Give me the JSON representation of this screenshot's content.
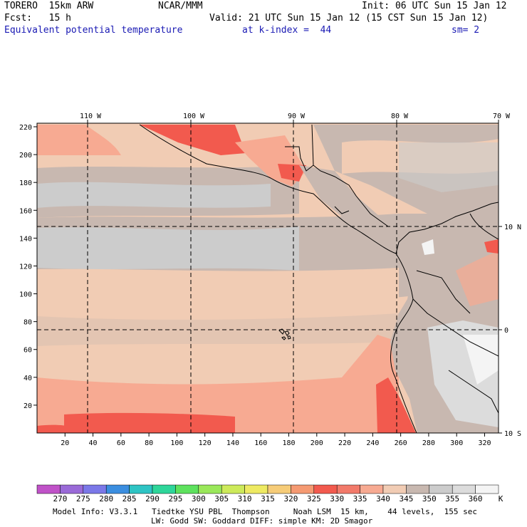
{
  "header": {
    "model": "TORERO  15km ARW",
    "org": "NCAR/MMM",
    "init": "Init: 06 UTC Sun 15 Jan 12",
    "fcst": "Fcst:   15 h",
    "valid": "Valid: 21 UTC Sun 15 Jan 12 (15 CST Sun 15 Jan 12)",
    "field": "Equivalent potential temperature",
    "level": "at k-index =  44",
    "smooth": "sm= 2"
  },
  "axes": {
    "top_lon": [
      "110 W",
      "100 W",
      "90 W",
      "80 W",
      "70 W"
    ],
    "right_lat": [
      "10 N",
      "0",
      "10 S"
    ],
    "left_y": [
      "220",
      "200",
      "180",
      "160",
      "140",
      "120",
      "100",
      "80",
      "60",
      "40",
      "20"
    ],
    "bottom_x": [
      "20",
      "40",
      "60",
      "80",
      "100",
      "120",
      "140",
      "160",
      "180",
      "200",
      "220",
      "240",
      "260",
      "280",
      "300",
      "320"
    ]
  },
  "colorbar": {
    "unit": "K",
    "levels": [
      "270",
      "275",
      "280",
      "285",
      "290",
      "295",
      "300",
      "305",
      "310",
      "315",
      "320",
      "325",
      "330",
      "335",
      "340",
      "345",
      "350",
      "355",
      "360"
    ],
    "colors": [
      "#c052c8",
      "#9a6ad8",
      "#7b78e8",
      "#3b8ee0",
      "#2ec4c4",
      "#2ed69a",
      "#5ee25e",
      "#9ae85a",
      "#cdea5a",
      "#eeea62",
      "#f6cc78",
      "#f59a72",
      "#f25a4e",
      "#f27a6a",
      "#f7aa92",
      "#f1ccb4",
      "#c8b8b0",
      "#cccccc",
      "#dcdcdc",
      "#f4f4f4"
    ]
  },
  "footer": {
    "line1": "Model Info: V3.3.1   Tiedtke YSU PBL  Thompson     Noah LSM  15 km,    44 levels,  155 sec",
    "line2": "LW: Godd SW: Goddard DIFF: simple KM: 2D Smagor"
  }
}
